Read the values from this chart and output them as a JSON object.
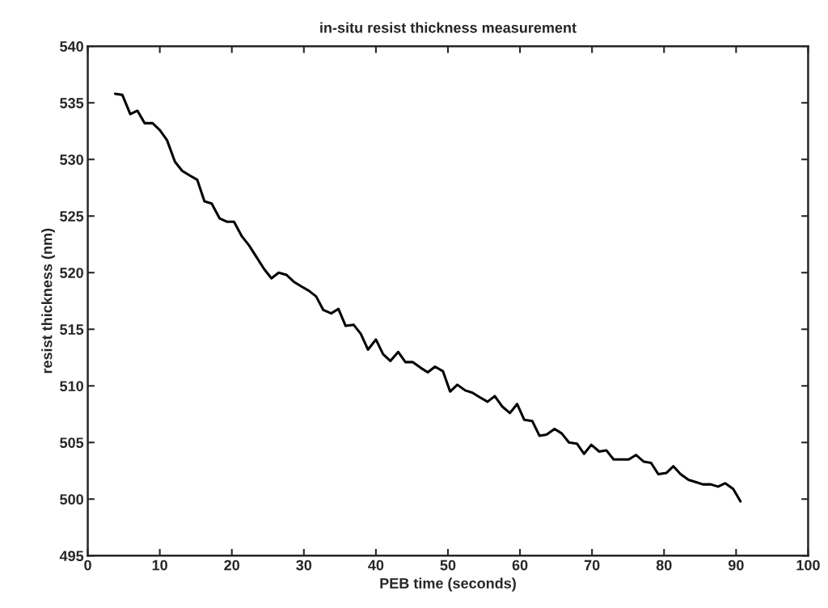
{
  "chart_data": {
    "type": "line",
    "title": "in-situ resist thickness measurement",
    "xlabel": "PEB time (seconds)",
    "ylabel": "resist thickness (nm)",
    "x": [
      3.8,
      4.8,
      5.9,
      6.9,
      7.9,
      9.0,
      10.0,
      11.0,
      12.1,
      13.1,
      14.1,
      15.2,
      16.2,
      17.2,
      18.3,
      19.3,
      20.3,
      21.4,
      22.4,
      23.4,
      24.5,
      25.5,
      26.5,
      27.6,
      28.6,
      29.6,
      30.7,
      31.7,
      32.7,
      33.8,
      34.8,
      35.8,
      36.9,
      37.9,
      38.9,
      40.0,
      41.0,
      42.0,
      43.1,
      44.1,
      45.1,
      46.2,
      47.2,
      48.2,
      49.3,
      50.3,
      51.3,
      52.4,
      53.4,
      54.4,
      55.5,
      56.5,
      57.5,
      58.6,
      59.6,
      60.6,
      61.7,
      62.7,
      63.7,
      64.8,
      65.8,
      66.8,
      67.9,
      68.9,
      69.9,
      71.0,
      72.0,
      73.0,
      74.1,
      75.1,
      76.1,
      77.2,
      78.2,
      79.2,
      80.3,
      81.3,
      82.3,
      83.4,
      84.4,
      85.4,
      86.5,
      87.5,
      88.5,
      89.6,
      90.6
    ],
    "series": [
      {
        "color": "#000000",
        "values": [
          535.8,
          535.7,
          534.0,
          534.3,
          533.2,
          533.2,
          532.6,
          531.7,
          529.8,
          529.0,
          528.6,
          528.2,
          526.3,
          526.1,
          524.8,
          524.5,
          524.5,
          523.2,
          522.4,
          521.4,
          520.3,
          519.5,
          520.0,
          519.8,
          519.2,
          518.8,
          518.4,
          517.9,
          516.7,
          516.4,
          516.8,
          515.3,
          515.4,
          514.6,
          513.2,
          514.1,
          512.8,
          512.2,
          513.0,
          512.1,
          512.1,
          511.6,
          511.2,
          511.7,
          511.3,
          509.5,
          510.1,
          509.6,
          509.4,
          509.0,
          508.6,
          509.1,
          508.2,
          507.6,
          508.4,
          507.0,
          506.9,
          505.6,
          505.7,
          506.2,
          505.8,
          505.0,
          504.9,
          504.0,
          504.8,
          504.2,
          504.3,
          503.5,
          503.5,
          503.5,
          503.9,
          503.3,
          503.2,
          502.2,
          502.3,
          502.9,
          502.2,
          501.7,
          501.5,
          501.3,
          501.3,
          501.1,
          501.4,
          500.9,
          499.8
        ]
      }
    ],
    "xlim": [
      0,
      100
    ],
    "xticks": [
      0,
      10,
      20,
      30,
      40,
      50,
      60,
      70,
      80,
      90,
      100
    ],
    "ylim": [
      495,
      540
    ],
    "yticks": [
      495,
      500,
      505,
      510,
      515,
      520,
      525,
      530,
      535,
      540
    ],
    "grid": false,
    "legend": false
  }
}
